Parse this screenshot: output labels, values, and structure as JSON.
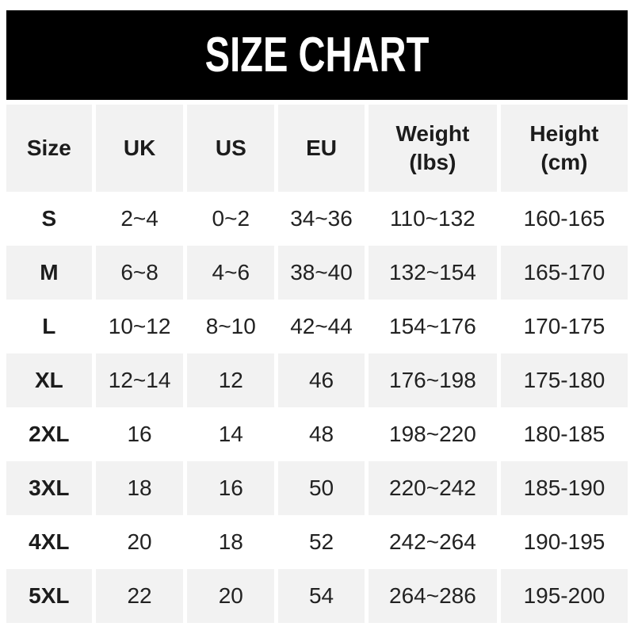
{
  "banner": {
    "title": "SIZE CHART",
    "bg_color": "#000000",
    "text_color": "#ffffff"
  },
  "colors": {
    "stripe_bg": "#f2f2f2",
    "row_bg": "#ffffff",
    "text": "#222222"
  },
  "chart_data": {
    "type": "table",
    "title": "SIZE CHART",
    "columns": [
      {
        "label": "Size"
      },
      {
        "label": "UK"
      },
      {
        "label": "US"
      },
      {
        "label": "EU"
      },
      {
        "label": "Weight",
        "label2": "(lbs)"
      },
      {
        "label": "Height",
        "label2": "(cm)"
      }
    ],
    "rows": [
      {
        "size": "S",
        "uk": "2~4",
        "us": "0~2",
        "eu": "34~36",
        "weight": "110~132",
        "height": "160-165"
      },
      {
        "size": "M",
        "uk": "6~8",
        "us": "4~6",
        "eu": "38~40",
        "weight": "132~154",
        "height": "165-170"
      },
      {
        "size": "L",
        "uk": "10~12",
        "us": "8~10",
        "eu": "42~44",
        "weight": "154~176",
        "height": "170-175"
      },
      {
        "size": "XL",
        "uk": "12~14",
        "us": "12",
        "eu": "46",
        "weight": "176~198",
        "height": "175-180"
      },
      {
        "size": "2XL",
        "uk": "16",
        "us": "14",
        "eu": "48",
        "weight": "198~220",
        "height": "180-185"
      },
      {
        "size": "3XL",
        "uk": "18",
        "us": "16",
        "eu": "50",
        "weight": "220~242",
        "height": "185-190"
      },
      {
        "size": "4XL",
        "uk": "20",
        "us": "18",
        "eu": "52",
        "weight": "242~264",
        "height": "190-195"
      },
      {
        "size": "5XL",
        "uk": "22",
        "us": "20",
        "eu": "54",
        "weight": "264~286",
        "height": "195-200"
      }
    ]
  }
}
